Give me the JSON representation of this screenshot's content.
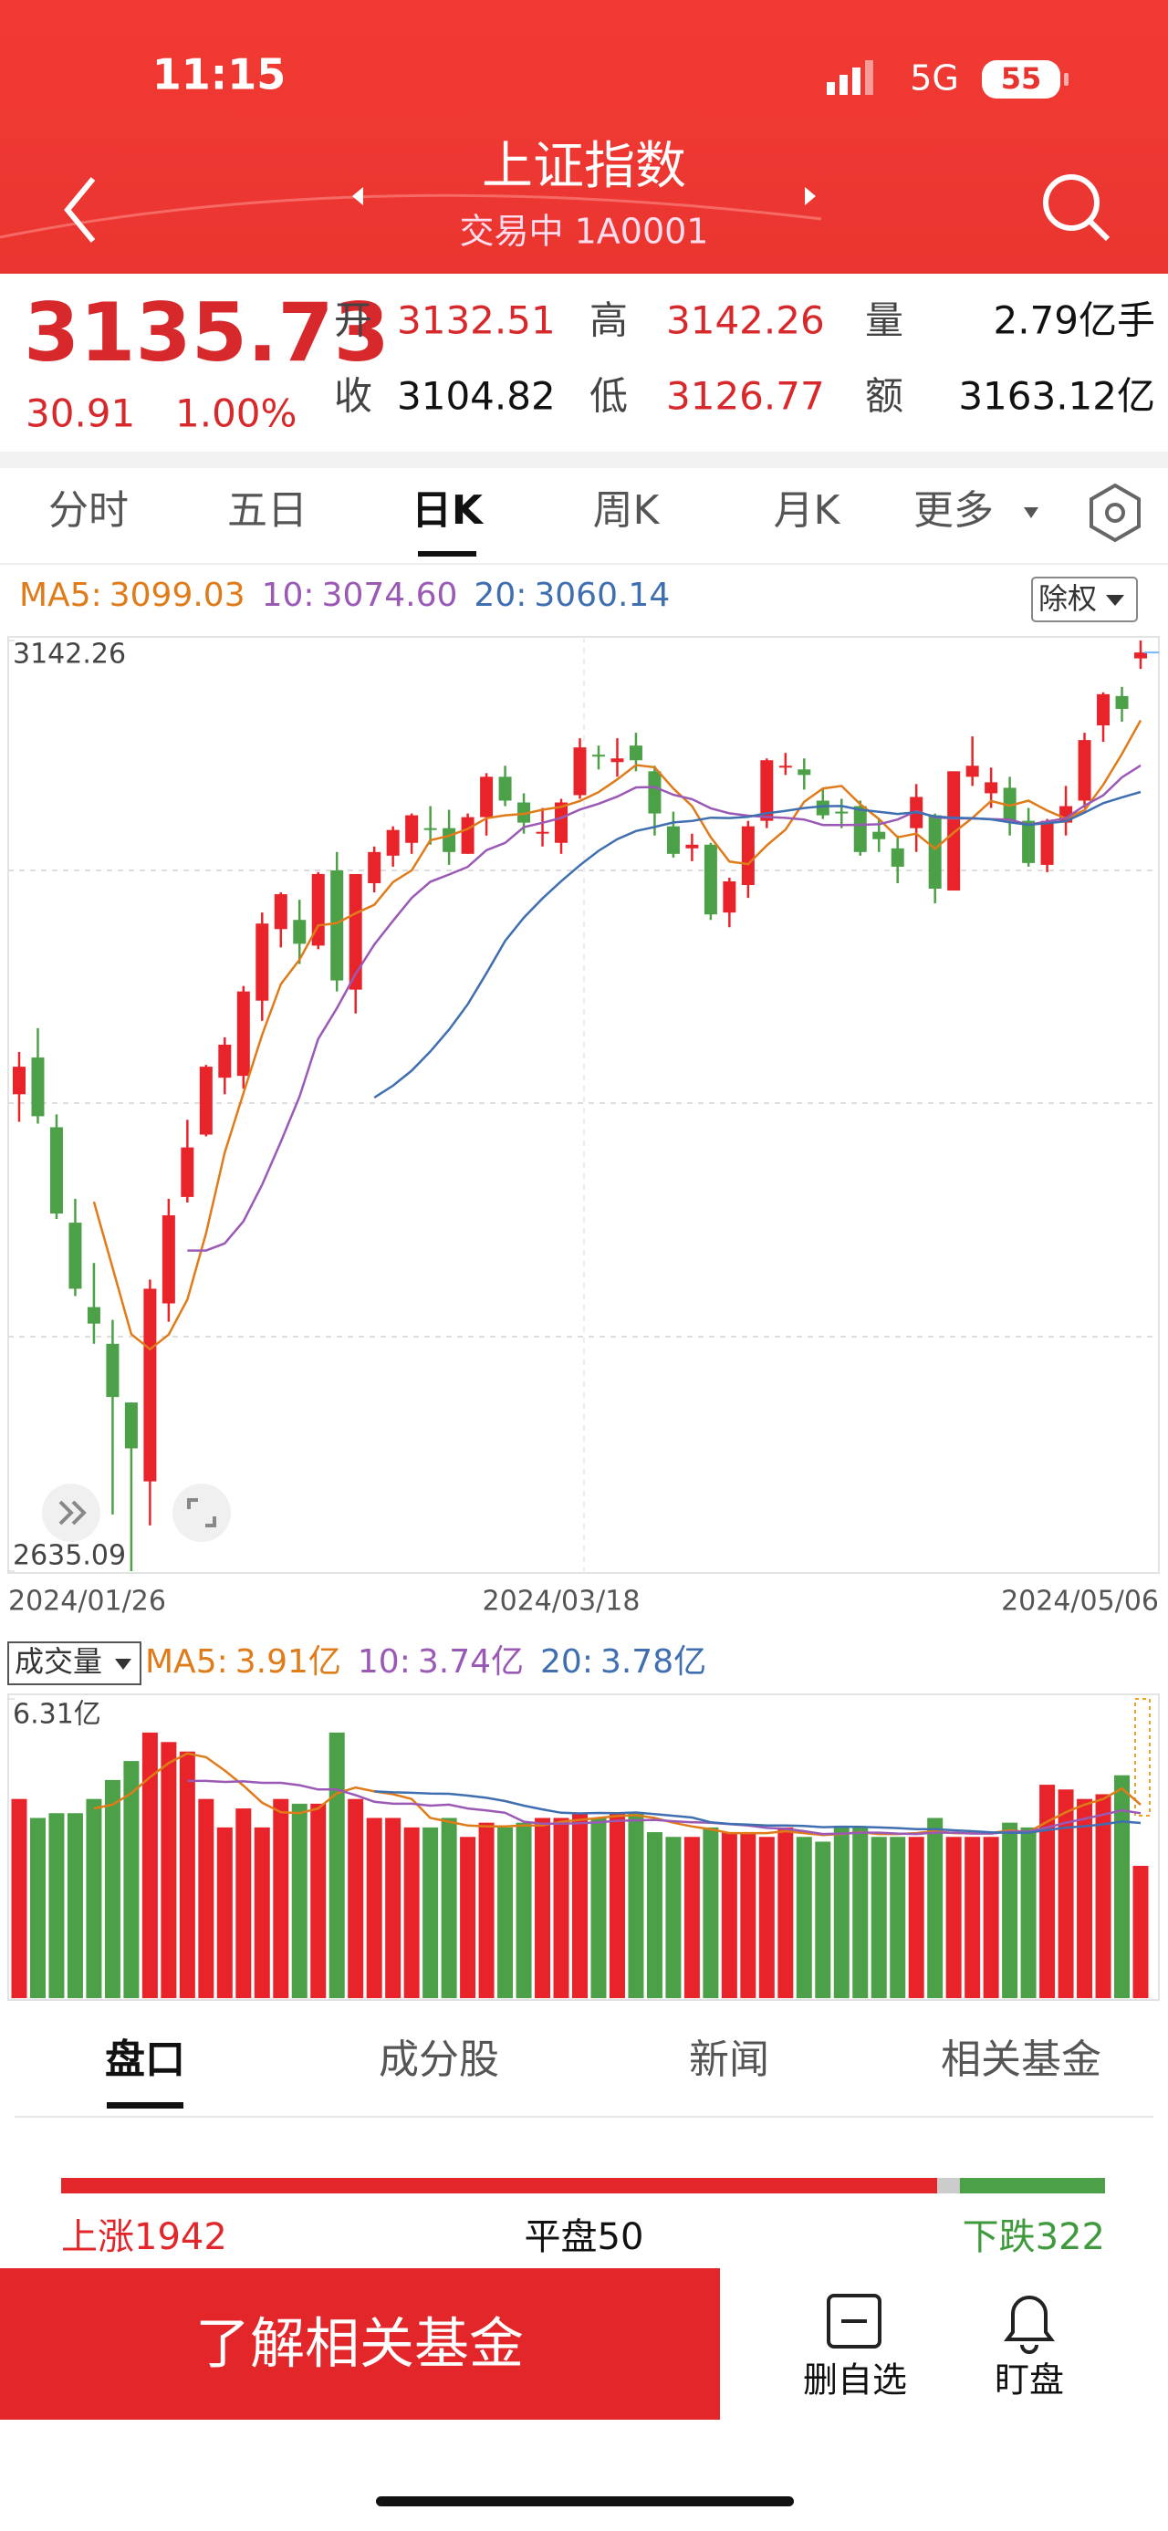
{
  "status_bar": {
    "time": "11:15",
    "network": "5G",
    "battery": "55"
  },
  "header": {
    "title": "上证指数",
    "subtitle": "交易中 1A0001"
  },
  "quote": {
    "price": "3135.73",
    "change": "30.91",
    "change_pct": "1.00%",
    "fields": [
      {
        "label": "开",
        "value": "3132.51"
      },
      {
        "label": "高",
        "value": "3142.26"
      },
      {
        "label": "量",
        "value": "2.79亿手"
      },
      {
        "label": "收",
        "value": "3104.82"
      },
      {
        "label": "低",
        "value": "3126.77"
      },
      {
        "label": "额",
        "value": "3163.12亿"
      }
    ]
  },
  "period_tabs": [
    "分时",
    "五日",
    "日K",
    "周K",
    "月K",
    "更多"
  ],
  "adjust_button": "除权",
  "chart_data": [
    {
      "type": "candlestick",
      "ma_legend": [
        {
          "label": "MA5:",
          "value": "3099.03",
          "color": "#e07b1a"
        },
        {
          "label": "10:",
          "value": "3074.60",
          "color": "#9b59b6"
        },
        {
          "label": "20:",
          "value": "3060.14",
          "color": "#3f6fb0"
        }
      ],
      "ma_periods": [
        5,
        10,
        20
      ],
      "categories": [
        "2024/01/26",
        null,
        null,
        null,
        null,
        null,
        null,
        null,
        null,
        null,
        null,
        null,
        null,
        null,
        null,
        null,
        null,
        null,
        null,
        null,
        null,
        null,
        null,
        null,
        null,
        null,
        null,
        null,
        null,
        "2024/03/18",
        null,
        null,
        null,
        null,
        null,
        null,
        null,
        null,
        null,
        null,
        null,
        null,
        null,
        null,
        null,
        null,
        null,
        null,
        null,
        null,
        null,
        null,
        null,
        null,
        null,
        null,
        null,
        null,
        null,
        null,
        "2024/05/06"
      ],
      "open": [
        2895,
        2915,
        2877,
        2825,
        2779,
        2759,
        2727,
        2684,
        2781,
        2839,
        2873,
        2904,
        2905,
        2946,
        2985,
        2990,
        2976,
        3017,
        2952,
        3010,
        3025,
        3032,
        3040,
        3040,
        3026,
        3046,
        3068,
        3054,
        3037,
        3032,
        3058,
        3080,
        3076,
        3085,
        3071,
        3041,
        3029,
        3031,
        2994,
        3009,
        3044,
        3074,
        3072,
        3055,
        3049,
        3052,
        3038,
        3029,
        3040,
        3047,
        3006,
        3068,
        3059,
        3062,
        3044,
        3020,
        3043,
        3055,
        3096,
        3112,
        3132.51
      ],
      "high": [
        2918,
        2931,
        2884,
        2838,
        2803,
        2772,
        2727,
        2794,
        2838,
        2881,
        2911,
        2926,
        2954,
        2994,
        3005,
        3001,
        3016,
        3027,
        3015,
        3030,
        3041,
        3048,
        3052,
        3050,
        3048,
        3070,
        3074,
        3059,
        3051,
        3056,
        3089,
        3085,
        3089,
        3092,
        3074,
        3049,
        3037,
        3032,
        3013,
        3044,
        3078,
        3081,
        3078,
        3062,
        3056,
        3055,
        3045,
        3036,
        3064,
        3048,
        3071,
        3090,
        3073,
        3068,
        3051,
        3045,
        3063,
        3092,
        3114,
        3117,
        3142.26
      ],
      "low": [
        2880,
        2879,
        2827,
        2785,
        2759,
        2666,
        2635.09,
        2660,
        2771,
        2836,
        2872,
        2895,
        2898,
        2935,
        2975,
        2966,
        2974,
        2951,
        2939,
        3005,
        3019,
        3026,
        3031,
        3020,
        3026,
        3036,
        3052,
        3037,
        3030,
        3026,
        3056,
        3072,
        3068,
        3071,
        3036,
        3024,
        3022,
        2990,
        2986,
        3002,
        3040,
        3069,
        3061,
        3045,
        3040,
        3025,
        3027,
        3010,
        3027,
        2999,
        3006,
        3063,
        3051,
        3036,
        3019,
        3016,
        3036,
        3051,
        3087,
        3098,
        3126.77
      ],
      "close": [
        2910,
        2883,
        2830,
        2789,
        2770,
        2730,
        2702,
        2789,
        2829,
        2866,
        2910,
        2922,
        2951,
        2988,
        3004,
        2977,
        3015,
        2957,
        3015,
        3027,
        3039,
        3047,
        3039,
        3027,
        3046,
        3068,
        3055,
        3043,
        3038,
        3054,
        3084,
        3079,
        3078,
        3077,
        3048,
        3026,
        3031,
        2993,
        3011,
        3041,
        3077,
        3074,
        3069,
        3047,
        3048,
        3027,
        3034,
        3019,
        3057,
        3007,
        3071,
        3074,
        3065,
        3044,
        3021,
        3044,
        3052,
        3088,
        3113,
        3105,
        3135.73
      ],
      "ylim": [
        2635.09,
        3142.26
      ],
      "yticks": [
        3142.26,
        2635.09
      ],
      "up_color": "#e8242a",
      "down_color": "#4ca047"
    },
    {
      "type": "bar",
      "legend_title": "成交量",
      "ma_legend": [
        {
          "label": "MA5:",
          "value": "3.91亿",
          "color": "#e07b1a"
        },
        {
          "label": "10:",
          "value": "3.74亿",
          "color": "#9b59b6"
        },
        {
          "label": "20:",
          "value": "3.78亿",
          "color": "#3f6fb0"
        }
      ],
      "values": [
        4.2,
        3.8,
        3.9,
        3.9,
        4.2,
        4.6,
        5.0,
        5.6,
        5.4,
        5.2,
        4.2,
        3.6,
        4.0,
        3.6,
        4.2,
        4.1,
        4.1,
        5.6,
        4.2,
        3.8,
        3.8,
        3.6,
        3.6,
        3.8,
        3.4,
        3.7,
        3.6,
        3.7,
        3.8,
        3.8,
        3.9,
        3.8,
        3.9,
        3.9,
        3.5,
        3.4,
        3.4,
        3.6,
        3.5,
        3.5,
        3.4,
        3.6,
        3.4,
        3.3,
        3.6,
        3.6,
        3.4,
        3.4,
        3.4,
        3.8,
        3.4,
        3.4,
        3.4,
        3.7,
        3.6,
        4.5,
        4.4,
        4.2,
        4.3,
        4.7,
        2.79
      ],
      "ylim": [
        0,
        6.31
      ],
      "yticks": [
        {
          "value": 6.31,
          "label": "6.31亿"
        }
      ]
    }
  ],
  "detail_tabs": [
    "盘口",
    "成分股",
    "新闻",
    "相关基金"
  ],
  "market_breadth": {
    "up_label": "上涨",
    "up": 1942,
    "flat_label": "平盘",
    "flat": 50,
    "down_label": "下跌",
    "down": 322
  },
  "bottom_bar": {
    "button": "了解相关基金",
    "actions": [
      "删自选",
      "盯盘"
    ]
  }
}
